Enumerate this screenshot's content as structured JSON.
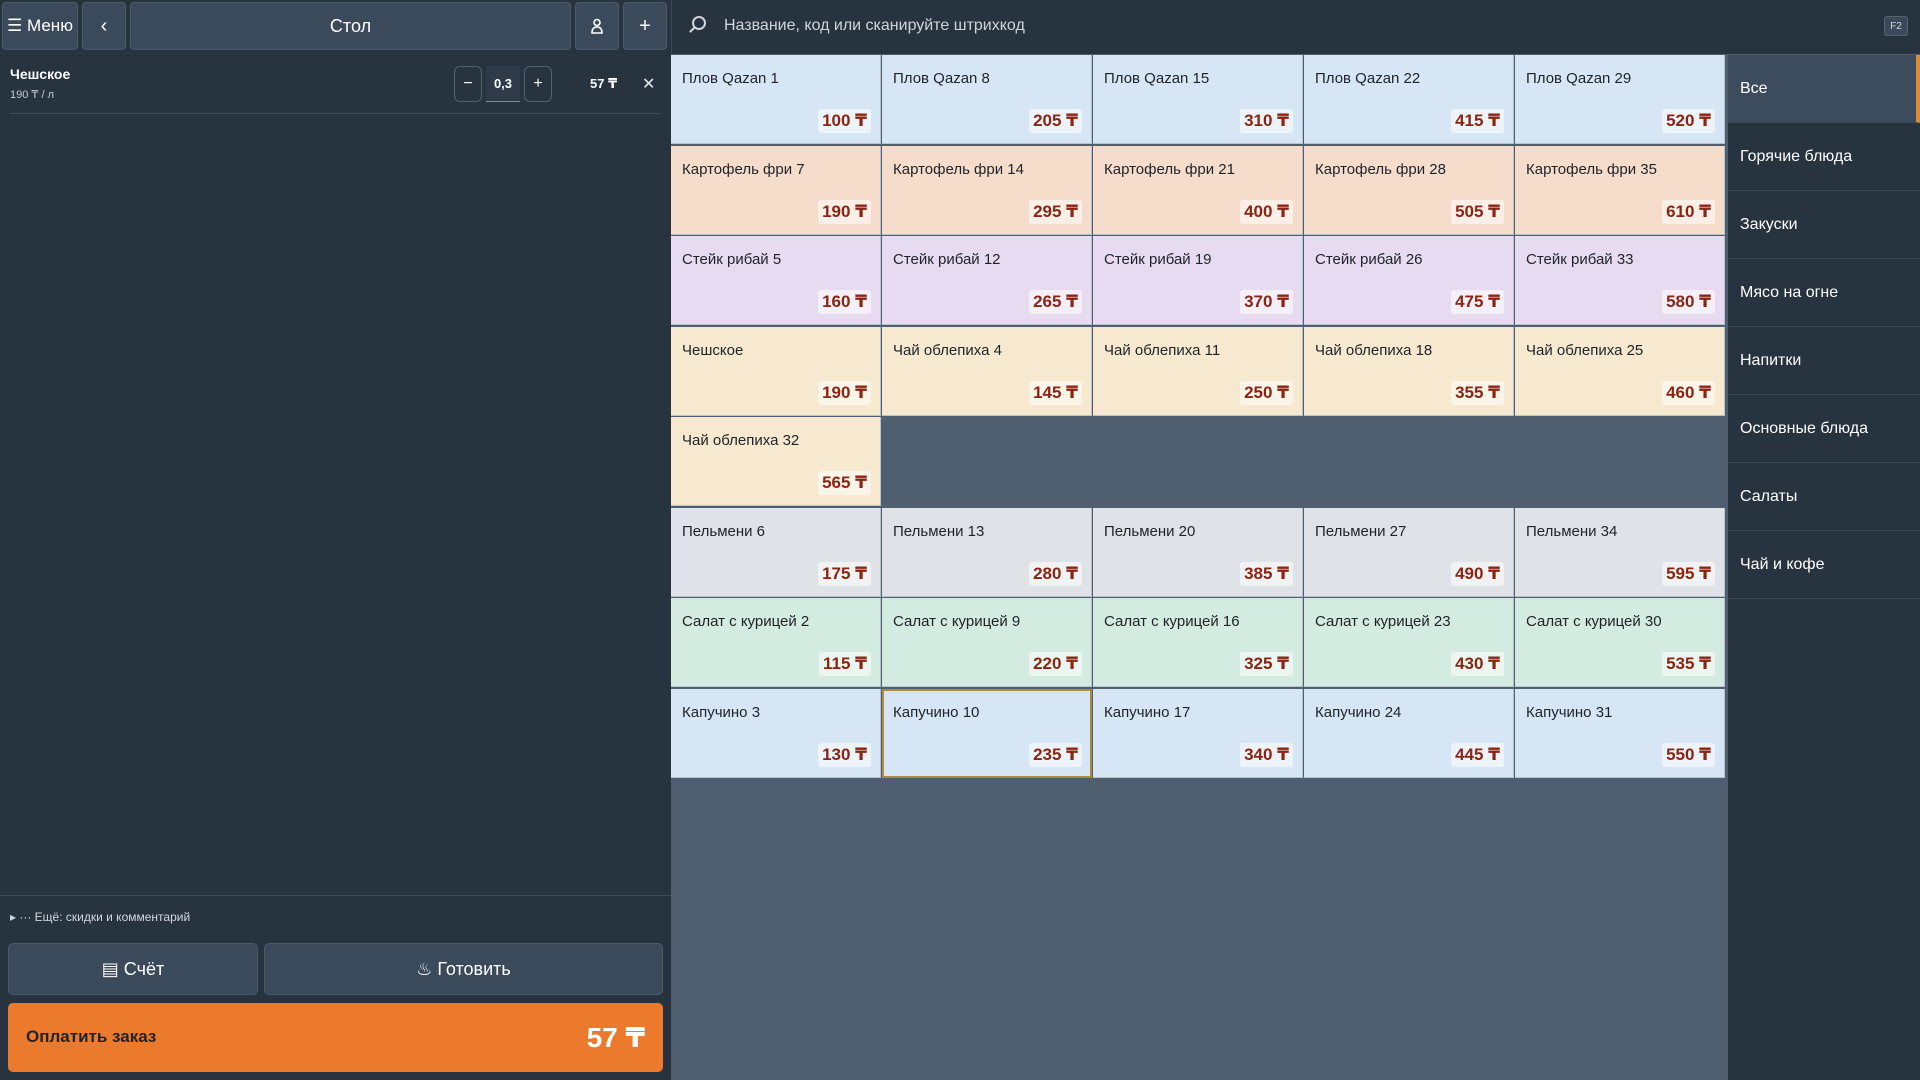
{
  "topbar": {
    "menu_label": "☰ Меню",
    "back_label": "‹",
    "table_label": "Стол",
    "guest_icon": "person-icon",
    "add_label": "+"
  },
  "order": {
    "items": [
      {
        "name": "Чешское",
        "unit_price": "190 ₸ / л",
        "qty": "0,3",
        "total": "57 ₸"
      }
    ],
    "more_label": "▸ ··· Ещё: скидки и комментарий",
    "bill_label": "▤ Счёт",
    "cook_label": "♨ Готовить",
    "pay_label": "Оплатить заказ",
    "pay_total": "57 ₸"
  },
  "search": {
    "placeholder": "Название, код или сканируйте штрихкод",
    "shortcut": "F2"
  },
  "colors": {
    "blue": "#d6e6f4",
    "peach": "#f6dccb",
    "lavender": "#e6dbf1",
    "cream": "#f6e9cf",
    "gray": "#dfe2e6",
    "mint": "#d3ebe0",
    "accent": "#ec7a2c"
  },
  "grid": {
    "rows": [
      {
        "color": "blue",
        "tiles": [
          {
            "name": "Плов Qazan 1",
            "price": "100 ₸"
          },
          {
            "name": "Плов Qazan 8",
            "price": "205 ₸"
          },
          {
            "name": "Плов Qazan 15",
            "price": "310 ₸"
          },
          {
            "name": "Плов Qazan 22",
            "price": "415 ₸"
          },
          {
            "name": "Плов Qazan 29",
            "price": "520 ₸"
          }
        ]
      },
      {
        "color": "peach",
        "tiles": [
          {
            "name": "Картофель фри 7",
            "price": "190 ₸"
          },
          {
            "name": "Картофель фри 14",
            "price": "295 ₸"
          },
          {
            "name": "Картофель фри 21",
            "price": "400 ₸"
          },
          {
            "name": "Картофель фри 28",
            "price": "505 ₸"
          },
          {
            "name": "Картофель фри 35",
            "price": "610 ₸"
          }
        ]
      },
      {
        "color": "lavender",
        "tiles": [
          {
            "name": "Стейк рибай 5",
            "price": "160 ₸"
          },
          {
            "name": "Стейк рибай 12",
            "price": "265 ₸"
          },
          {
            "name": "Стейк рибай 19",
            "price": "370 ₸"
          },
          {
            "name": "Стейк рибай 26",
            "price": "475 ₸"
          },
          {
            "name": "Стейк рибай 33",
            "price": "580 ₸"
          }
        ]
      },
      {
        "color": "cream",
        "tiles": [
          {
            "name": "Чешское",
            "price": "190 ₸"
          },
          {
            "name": "Чай облепиха 4",
            "price": "145 ₸"
          },
          {
            "name": "Чай облепиха 11",
            "price": "250 ₸"
          },
          {
            "name": "Чай облепиха 18",
            "price": "355 ₸"
          },
          {
            "name": "Чай облепиха 25",
            "price": "460 ₸"
          }
        ]
      },
      {
        "color": "cream",
        "tiles": [
          {
            "name": "Чай облепиха 32",
            "price": "565 ₸"
          }
        ]
      },
      {
        "color": "gray",
        "tiles": [
          {
            "name": "Пельмени 6",
            "price": "175 ₸"
          },
          {
            "name": "Пельмени 13",
            "price": "280 ₸"
          },
          {
            "name": "Пельмени 20",
            "price": "385 ₸"
          },
          {
            "name": "Пельмени 27",
            "price": "490 ₸"
          },
          {
            "name": "Пельмени 34",
            "price": "595 ₸"
          }
        ]
      },
      {
        "color": "mint",
        "tiles": [
          {
            "name": "Салат с курицей 2",
            "price": "115 ₸"
          },
          {
            "name": "Салат с курицей 9",
            "price": "220 ₸"
          },
          {
            "name": "Салат с курицей 16",
            "price": "325 ₸"
          },
          {
            "name": "Салат с курицей 23",
            "price": "430 ₸"
          },
          {
            "name": "Салат с курицей 30",
            "price": "535 ₸"
          }
        ]
      },
      {
        "color": "blue",
        "tiles": [
          {
            "name": "Капучино 3",
            "price": "130 ₸"
          },
          {
            "name": "Капучино 10",
            "price": "235 ₸",
            "selected": true
          },
          {
            "name": "Капучино 17",
            "price": "340 ₸"
          },
          {
            "name": "Капучино 24",
            "price": "445 ₸"
          },
          {
            "name": "Капучино 31",
            "price": "550 ₸"
          }
        ]
      }
    ]
  },
  "categories": [
    {
      "label": "Все",
      "active": true
    },
    {
      "label": "Горячие блюда"
    },
    {
      "label": "Закуски"
    },
    {
      "label": "Мясо на огне"
    },
    {
      "label": "Напитки"
    },
    {
      "label": "Основные блюда"
    },
    {
      "label": "Салаты"
    },
    {
      "label": "Чай и кофе"
    }
  ]
}
